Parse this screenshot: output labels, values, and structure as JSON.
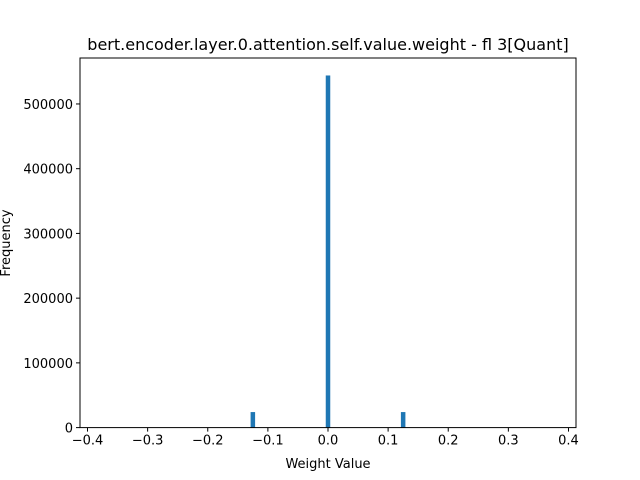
{
  "chart_data": {
    "type": "bar",
    "title": "bert.encoder.layer.0.attention.self.value.weight - fl 3[Quant]",
    "xlabel": "Weight Value",
    "ylabel": "Frequency",
    "xlim": [
      -0.4125,
      0.4125
    ],
    "ylim": [
      0,
      571000
    ],
    "x_ticks": [
      -0.4,
      -0.3,
      -0.2,
      -0.1,
      0.0,
      0.1,
      0.2,
      0.3,
      0.4
    ],
    "x_tick_labels": [
      "−0.4",
      "−0.3",
      "−0.2",
      "−0.1",
      "0.0",
      "0.1",
      "0.2",
      "0.3",
      "0.4"
    ],
    "y_ticks": [
      0,
      100000,
      200000,
      300000,
      400000,
      500000
    ],
    "y_tick_labels": [
      "0",
      "100000",
      "200000",
      "300000",
      "400000",
      "500000"
    ],
    "bin_width": 0.0075,
    "bars": [
      {
        "x": -0.125,
        "value": 24000
      },
      {
        "x": 0.0,
        "value": 544000
      },
      {
        "x": 0.125,
        "value": 24000
      }
    ],
    "color": "#1f77b4",
    "grid": false,
    "legend": "none"
  }
}
